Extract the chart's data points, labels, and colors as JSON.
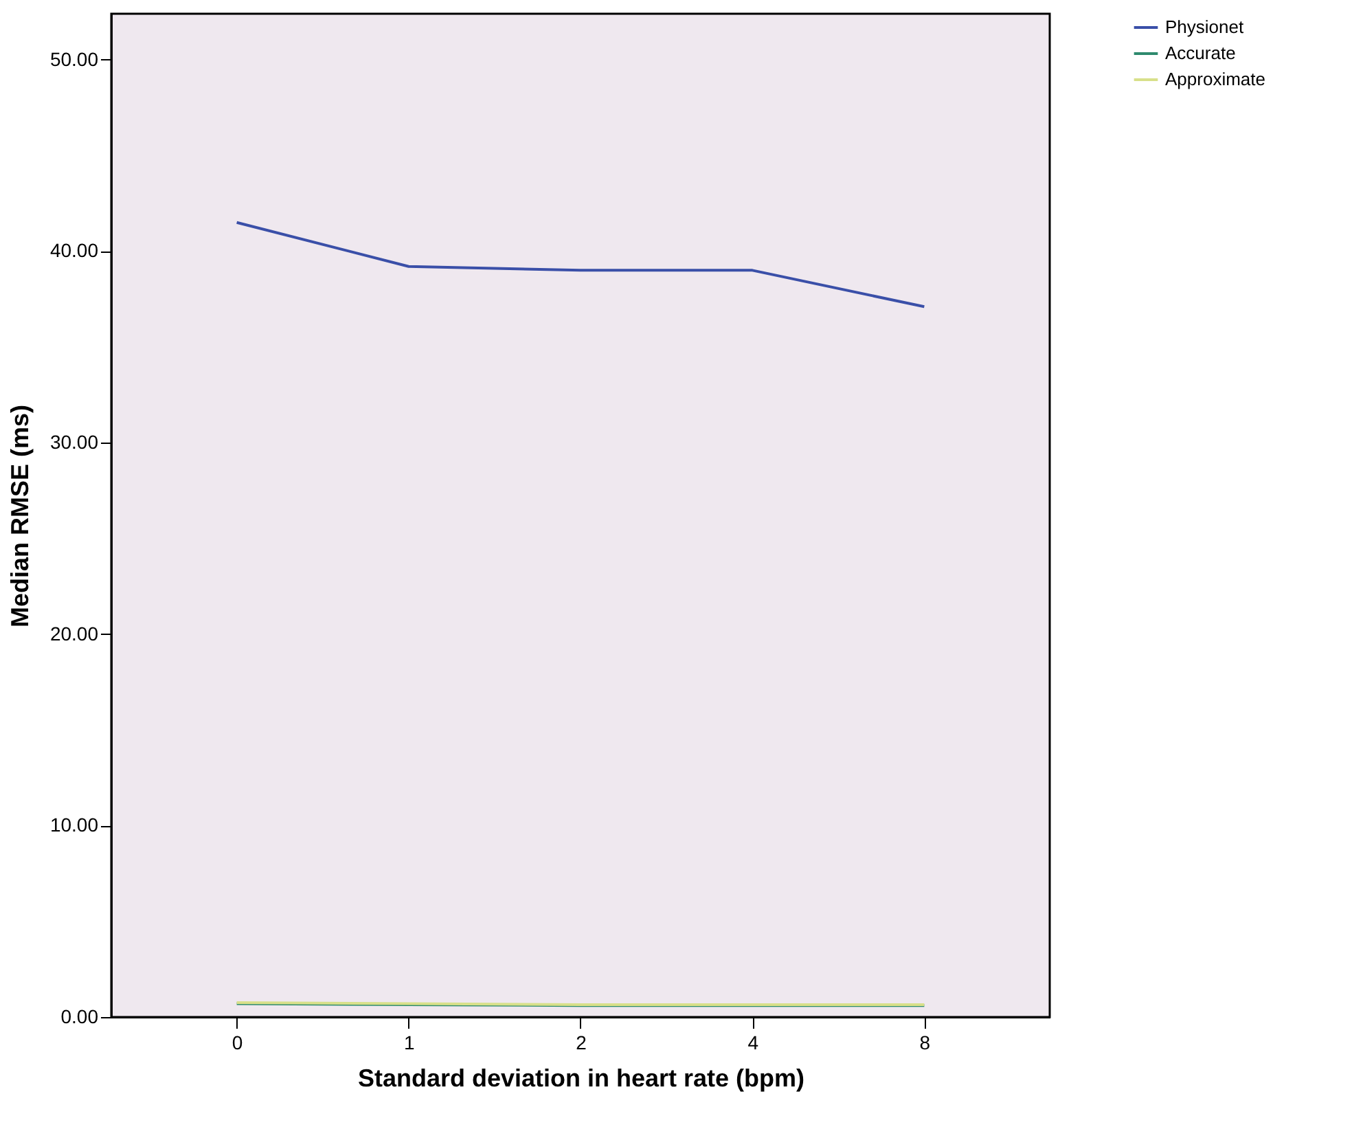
{
  "chart_data": {
    "type": "line",
    "xlabel": "Standard deviation in heart rate (bpm)",
    "ylabel": "Median RMSE (ms)",
    "categories": [
      "0",
      "1",
      "2",
      "4",
      "8"
    ],
    "series": [
      {
        "name": "Physionet",
        "color": "#3a4fa8",
        "values": [
          41.5,
          39.2,
          39.0,
          39.0,
          37.1
        ]
      },
      {
        "name": "Accurate",
        "color": "#2e8a6e",
        "values": [
          0.7,
          0.65,
          0.6,
          0.6,
          0.6
        ]
      },
      {
        "name": "Approximate",
        "color": "#d8e08a",
        "values": [
          0.75,
          0.7,
          0.65,
          0.65,
          0.65
        ]
      }
    ],
    "ylim": [
      0,
      52.4
    ],
    "yticks": [
      {
        "value": 0,
        "label": "0.00"
      },
      {
        "value": 10,
        "label": "10.00"
      },
      {
        "value": 20,
        "label": "20.00"
      },
      {
        "value": 30,
        "label": "30.00"
      },
      {
        "value": 40,
        "label": "40.00"
      },
      {
        "value": 50,
        "label": "50.00"
      }
    ],
    "grid": false,
    "legend": "top right",
    "marker": "none",
    "line_style": "solid"
  }
}
